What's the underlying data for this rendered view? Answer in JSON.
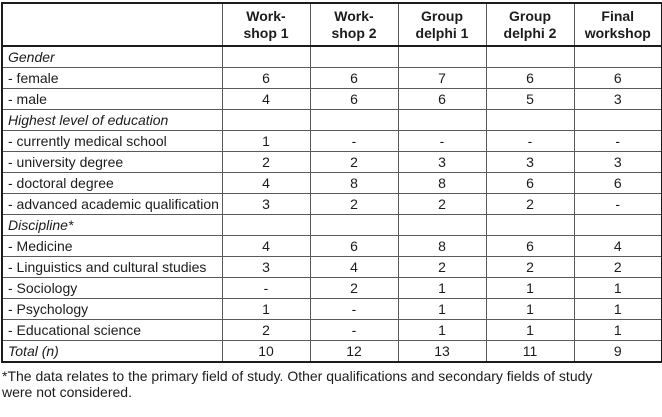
{
  "table": {
    "columns": [
      {
        "line1": "Work-",
        "line2": "shop 1"
      },
      {
        "line1": "Work-",
        "line2": "shop 2"
      },
      {
        "line1": "Group",
        "line2": "delphi 1"
      },
      {
        "line1": "Group",
        "line2": "delphi 2"
      },
      {
        "line1": "Final",
        "line2": "workshop"
      }
    ],
    "rows": [
      {
        "label": "Gender",
        "style": "section",
        "values": [
          "",
          "",
          "",
          "",
          ""
        ]
      },
      {
        "label": "- female",
        "style": "item",
        "values": [
          "6",
          "6",
          "7",
          "6",
          "6"
        ]
      },
      {
        "label": "- male",
        "style": "item",
        "values": [
          "4",
          "6",
          "6",
          "5",
          "3"
        ]
      },
      {
        "label": "Highest level of education",
        "style": "section",
        "values": [
          "",
          "",
          "",
          "",
          ""
        ]
      },
      {
        "label": "- currently medical school",
        "style": "item",
        "values": [
          "1",
          "-",
          "-",
          "-",
          "-"
        ]
      },
      {
        "label": "- university degree",
        "style": "item",
        "values": [
          "2",
          "2",
          "3",
          "3",
          "3"
        ]
      },
      {
        "label": "- doctoral degree",
        "style": "item",
        "values": [
          "4",
          "8",
          "8",
          "6",
          "6"
        ]
      },
      {
        "label": "- advanced academic qualification",
        "style": "item",
        "values": [
          "3",
          "2",
          "2",
          "2",
          "-"
        ]
      },
      {
        "label": "Discipline*",
        "style": "section",
        "values": [
          "",
          "",
          "",
          "",
          ""
        ]
      },
      {
        "label": "- Medicine",
        "style": "item",
        "values": [
          "4",
          "6",
          "8",
          "6",
          "4"
        ]
      },
      {
        "label": "- Linguistics and cultural studies",
        "style": "item",
        "values": [
          "3",
          "4",
          "2",
          "2",
          "2"
        ]
      },
      {
        "label": "- Sociology",
        "style": "item",
        "values": [
          "-",
          "2",
          "1",
          "1",
          "1"
        ]
      },
      {
        "label": "- Psychology",
        "style": "item",
        "values": [
          "1",
          "-",
          "1",
          "1",
          "1"
        ]
      },
      {
        "label": "- Educational science",
        "style": "item",
        "values": [
          "2",
          "-",
          "1",
          "1",
          "1"
        ]
      },
      {
        "label": "Total (n)",
        "style": "total",
        "values": [
          "10",
          "12",
          "13",
          "11",
          "9"
        ]
      }
    ],
    "footnote": "*The data relates to the primary field of study. Other qualifications and secondary fields of study were not considered."
  }
}
